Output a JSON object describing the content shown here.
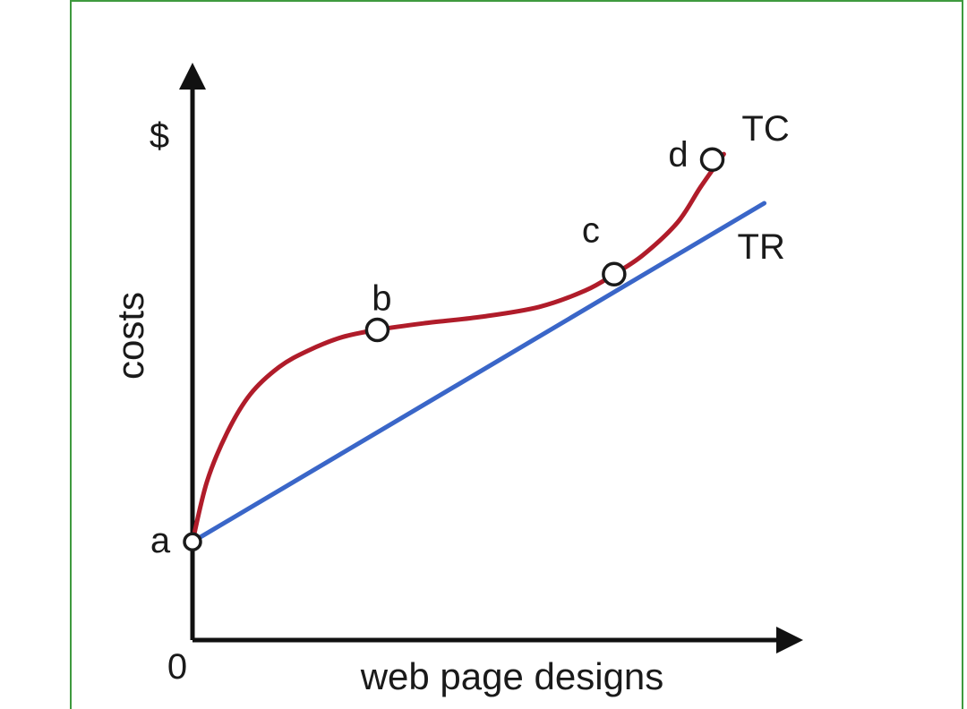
{
  "chart_data": {
    "type": "line",
    "title": "",
    "xlabel": "web page designs",
    "ylabel": "costs",
    "y_unit_label": "$",
    "origin_label": "0",
    "xlim": [
      0,
      10
    ],
    "ylim": [
      0,
      10
    ],
    "grid": false,
    "legend": "none",
    "colors": {
      "TC": "#b01c2a",
      "TR": "#3a66c8",
      "axis": "#111111"
    },
    "series": [
      {
        "name": "TC",
        "x": [
          0,
          0.25,
          0.6,
          1.0,
          1.5,
          2.0,
          2.6,
          3.2,
          4.0,
          5.0,
          6.0,
          6.8,
          7.3,
          7.8,
          8.4,
          8.8,
          9.2
        ],
        "y": [
          1.8,
          2.9,
          3.8,
          4.5,
          5.0,
          5.3,
          5.55,
          5.68,
          5.8,
          5.92,
          6.1,
          6.4,
          6.7,
          7.05,
          7.65,
          8.3,
          8.9
        ]
      },
      {
        "name": "TR",
        "x": [
          0,
          9.9
        ],
        "y": [
          1.8,
          8.0
        ]
      }
    ],
    "points": [
      {
        "label": "a",
        "x": 0,
        "y": 1.8
      },
      {
        "label": "b",
        "x": 3.2,
        "y": 5.68
      },
      {
        "label": "c",
        "x": 7.3,
        "y": 6.7
      },
      {
        "label": "d",
        "x": 9.0,
        "y": 8.8
      }
    ]
  }
}
